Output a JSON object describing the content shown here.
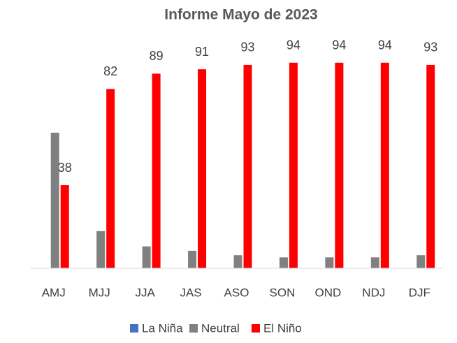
{
  "chart_data": {
    "type": "bar",
    "title": "Informe Mayo de 2023",
    "categories": [
      "AMJ",
      "MJJ",
      "JJA",
      "JAS",
      "ASO",
      "SON",
      "OND",
      "NDJ",
      "DJF"
    ],
    "series": [
      {
        "name": "La Niña",
        "color": "#4472c4",
        "values": [
          0,
          0,
          0,
          0,
          0,
          0,
          0,
          0,
          0
        ]
      },
      {
        "name": "Neutral",
        "color": "#808080",
        "values": [
          62,
          17,
          10,
          8,
          6,
          5,
          5,
          5,
          6
        ]
      },
      {
        "name": "El Niño",
        "color": "#ff0000",
        "values": [
          38,
          82,
          89,
          91,
          93,
          94,
          94,
          94,
          93
        ],
        "labels": true
      }
    ],
    "ylim": [
      0,
      100
    ],
    "legend": "bottom"
  }
}
